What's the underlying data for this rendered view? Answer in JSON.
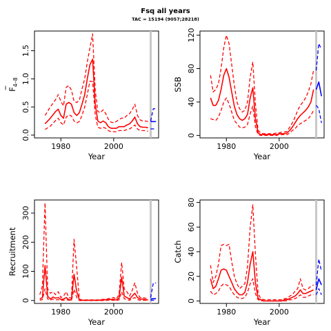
{
  "title": "Fsq all years",
  "subtitle": "TAC = 15194 (9057;28218)",
  "colors": {
    "estimate": "#ff0000",
    "forecast": "#0000ff",
    "divider": "#c8c8c8"
  },
  "chart_data": [
    {
      "id": "fbar",
      "type": "line",
      "ylabel_main": "F",
      "ylabel_sub": "4–8",
      "xlabel": "Year",
      "xlim": [
        1970,
        2017
      ],
      "ylim": [
        -0.05,
        1.85
      ],
      "xticks": [
        "1980",
        "2000"
      ],
      "yticks": [
        "0.0",
        "0.5",
        "1.0",
        "1.5"
      ],
      "divider_year": 2014,
      "x": [
        1974,
        1976,
        1978,
        1979,
        1980,
        1981,
        1982,
        1983,
        1984,
        1985,
        1986,
        1987,
        1988,
        1989,
        1990,
        1991,
        1992,
        1993,
        1994,
        1995,
        1996,
        1997,
        1998,
        1999,
        2000,
        2001,
        2002,
        2003,
        2004,
        2005,
        2006,
        2007,
        2008,
        2009,
        2010,
        2011,
        2012,
        2013
      ],
      "series": [
        {
          "role": "estimate",
          "values": [
            0.2,
            0.3,
            0.42,
            0.46,
            0.35,
            0.3,
            0.55,
            0.58,
            0.55,
            0.4,
            0.35,
            0.4,
            0.55,
            0.72,
            1.0,
            1.25,
            1.35,
            0.55,
            0.25,
            0.22,
            0.25,
            0.22,
            0.15,
            0.12,
            0.12,
            0.12,
            0.15,
            0.15,
            0.15,
            0.18,
            0.2,
            0.25,
            0.32,
            0.2,
            0.15,
            0.14,
            0.14,
            0.13
          ]
        },
        {
          "role": "upper",
          "values": [
            0.35,
            0.5,
            0.63,
            0.72,
            0.6,
            0.52,
            0.85,
            0.88,
            0.8,
            0.6,
            0.58,
            0.62,
            0.82,
            1.0,
            1.3,
            1.55,
            1.8,
            0.8,
            0.42,
            0.4,
            0.45,
            0.38,
            0.28,
            0.23,
            0.22,
            0.24,
            0.28,
            0.3,
            0.3,
            0.35,
            0.38,
            0.45,
            0.55,
            0.35,
            0.27,
            0.25,
            0.25,
            0.24
          ]
        },
        {
          "role": "lower",
          "values": [
            0.1,
            0.16,
            0.26,
            0.3,
            0.22,
            0.18,
            0.32,
            0.36,
            0.34,
            0.25,
            0.22,
            0.24,
            0.35,
            0.5,
            0.72,
            0.96,
            0.95,
            0.36,
            0.14,
            0.12,
            0.14,
            0.12,
            0.08,
            0.06,
            0.06,
            0.06,
            0.08,
            0.08,
            0.08,
            0.1,
            0.11,
            0.14,
            0.18,
            0.11,
            0.08,
            0.08,
            0.08,
            0.07
          ]
        }
      ],
      "forecast": {
        "x": [
          2014,
          2015,
          2016
        ],
        "est": [
          0.24,
          0.24,
          0.24
        ],
        "upper": [
          0.25,
          0.47,
          0.47
        ],
        "lower": [
          0.11,
          0.11,
          0.11
        ]
      }
    },
    {
      "id": "ssb",
      "type": "line",
      "ylabel_main": "SSB",
      "xlabel": "Year",
      "xlim": [
        1970,
        2017
      ],
      "ylim": [
        -3,
        125
      ],
      "xticks": [
        "1980",
        "2000"
      ],
      "yticks": [
        "0",
        "40",
        "80",
        "120"
      ],
      "divider_year": 2014,
      "x": [
        1974,
        1975,
        1976,
        1977,
        1978,
        1979,
        1980,
        1981,
        1982,
        1983,
        1984,
        1985,
        1986,
        1987,
        1988,
        1989,
        1990,
        1991,
        1992,
        1993,
        1994,
        1995,
        1996,
        1997,
        1998,
        1999,
        2000,
        2001,
        2002,
        2003,
        2004,
        2005,
        2006,
        2007,
        2008,
        2009,
        2010,
        2011,
        2012,
        2013
      ],
      "series": [
        {
          "role": "estimate",
          "values": [
            45,
            36,
            36,
            42,
            55,
            72,
            80,
            70,
            52,
            35,
            25,
            20,
            18,
            20,
            25,
            45,
            57,
            20,
            3,
            1,
            1,
            1,
            1,
            1,
            1,
            1,
            2,
            2,
            2,
            3,
            6,
            10,
            15,
            20,
            24,
            27,
            30,
            34,
            40,
            55
          ]
        },
        {
          "role": "upper",
          "values": [
            72,
            52,
            55,
            62,
            80,
            105,
            120,
            110,
            85,
            60,
            40,
            32,
            28,
            30,
            40,
            70,
            88,
            38,
            6,
            3,
            2,
            2,
            2,
            2,
            2,
            3,
            3,
            4,
            4,
            5,
            10,
            15,
            22,
            30,
            36,
            40,
            45,
            52,
            62,
            78
          ]
        },
        {
          "role": "lower",
          "values": [
            20,
            19,
            18,
            22,
            30,
            40,
            45,
            38,
            28,
            18,
            14,
            10,
            9,
            10,
            13,
            26,
            35,
            10,
            1,
            0,
            0,
            0,
            0,
            0,
            0,
            0,
            1,
            1,
            1,
            1,
            3,
            6,
            8,
            12,
            14,
            16,
            18,
            20,
            24,
            30
          ]
        }
      ],
      "forecast": {
        "x": [
          2014,
          2015,
          2016
        ],
        "est": [
          55,
          64,
          47
        ],
        "upper": [
          78,
          110,
          103
        ],
        "lower": [
          36,
          32,
          15
        ]
      }
    },
    {
      "id": "recruitment",
      "type": "line",
      "ylabel_main": "Recruitment",
      "xlabel": "Year",
      "xlim": [
        1970,
        2017
      ],
      "ylim": [
        -10,
        345
      ],
      "xticks": [
        "1980",
        "2000"
      ],
      "yticks": [
        "0",
        "100",
        "200",
        "300"
      ],
      "divider_year": 2014,
      "x": [
        1972,
        1973,
        1974,
        1975,
        1976,
        1977,
        1978,
        1979,
        1980,
        1981,
        1982,
        1983,
        1984,
        1985,
        1986,
        1987,
        1988,
        1989,
        1990,
        1992,
        1994,
        1996,
        1998,
        2000,
        2001,
        2002,
        2003,
        2004,
        2005,
        2006,
        2007,
        2008,
        2009,
        2010,
        2011,
        2012,
        2013
      ],
      "series": [
        {
          "role": "estimate",
          "values": [
            5,
            10,
            120,
            15,
            5,
            12,
            8,
            10,
            4,
            5,
            10,
            3,
            2,
            90,
            30,
            2,
            1,
            1,
            1,
            1,
            1,
            2,
            3,
            4,
            2,
            8,
            80,
            15,
            10,
            5,
            15,
            25,
            10,
            5,
            5,
            3,
            2
          ]
        },
        {
          "role": "upper",
          "values": [
            20,
            50,
            335,
            40,
            25,
            30,
            20,
            30,
            10,
            15,
            30,
            10,
            8,
            210,
            110,
            5,
            2,
            2,
            2,
            2,
            2,
            4,
            6,
            10,
            5,
            20,
            130,
            40,
            30,
            15,
            35,
            60,
            25,
            10,
            10,
            8,
            5
          ]
        },
        {
          "role": "lower",
          "values": [
            1,
            3,
            40,
            5,
            1,
            5,
            2,
            3,
            1,
            1,
            3,
            1,
            0,
            38,
            10,
            0,
            0,
            0,
            0,
            0,
            0,
            0,
            1,
            1,
            0,
            2,
            30,
            6,
            3,
            1,
            6,
            10,
            3,
            1,
            1,
            1,
            0
          ]
        }
      ],
      "forecast": {
        "x": [
          2014,
          2015,
          2016
        ],
        "est": [
          5,
          6,
          6
        ],
        "upper": [
          10,
          60,
          60
        ],
        "lower": [
          1,
          1,
          1
        ]
      }
    },
    {
      "id": "catch",
      "type": "line",
      "ylabel_main": "Catch",
      "xlabel": "Year",
      "xlim": [
        1970,
        2017
      ],
      "ylim": [
        -2,
        82
      ],
      "xticks": [
        "1980",
        "2000"
      ],
      "yticks": [
        "0",
        "20",
        "40",
        "60",
        "80"
      ],
      "divider_year": 2014,
      "x": [
        1974,
        1975,
        1976,
        1977,
        1978,
        1979,
        1980,
        1981,
        1982,
        1983,
        1984,
        1985,
        1986,
        1987,
        1988,
        1989,
        1990,
        1991,
        1992,
        1993,
        1994,
        1995,
        1996,
        1997,
        1998,
        1999,
        2000,
        2001,
        2002,
        2003,
        2004,
        2005,
        2006,
        2007,
        2008,
        2009,
        2010,
        2011,
        2012,
        2013
      ],
      "series": [
        {
          "role": "estimate",
          "values": [
            18,
            10,
            12,
            18,
            25,
            26,
            25,
            20,
            15,
            10,
            7,
            5,
            5,
            7,
            15,
            30,
            40,
            15,
            2,
            1,
            0,
            0,
            0,
            0,
            0,
            0,
            0,
            0,
            1,
            1,
            2,
            3,
            4,
            6,
            9,
            6,
            6,
            7,
            8,
            9
          ]
        },
        {
          "role": "upper",
          "values": [
            29,
            15,
            20,
            30,
            45,
            46,
            45,
            46,
            32,
            20,
            14,
            10,
            12,
            14,
            28,
            60,
            78,
            38,
            6,
            2,
            1,
            1,
            1,
            1,
            1,
            1,
            1,
            1,
            2,
            2,
            4,
            5,
            8,
            10,
            18,
            10,
            9,
            10,
            12,
            13
          ]
        },
        {
          "role": "lower",
          "values": [
            8,
            5,
            6,
            8,
            12,
            14,
            13,
            12,
            8,
            5,
            3,
            2,
            2,
            3,
            7,
            14,
            18,
            6,
            1,
            0,
            0,
            0,
            0,
            0,
            0,
            0,
            0,
            0,
            0,
            0,
            1,
            1,
            2,
            3,
            5,
            3,
            3,
            4,
            5,
            5
          ]
        }
      ],
      "forecast": {
        "x": [
          2014,
          2015,
          2016
        ],
        "est": [
          9,
          18,
          13
        ],
        "upper": [
          13,
          34,
          24
        ],
        "lower": [
          5,
          10,
          5
        ]
      }
    }
  ]
}
